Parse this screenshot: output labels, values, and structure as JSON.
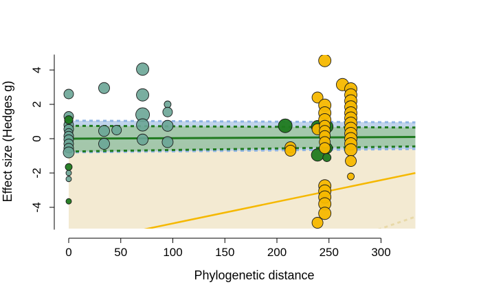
{
  "chart_data": {
    "type": "scatter",
    "title": "",
    "xlabel": "Phylogenetic distance",
    "ylabel": "Effect size (Hedges g)",
    "xlim": [
      0,
      333
    ],
    "ylim": [
      -5.3,
      4.9
    ],
    "xticks": [
      0,
      50,
      100,
      150,
      200,
      250,
      300
    ],
    "yticks": [
      -4,
      -2,
      0,
      2,
      4
    ],
    "grid": false,
    "legend": "none",
    "colors": {
      "teal": "#6aa596",
      "green": "#1f7a1f",
      "gold": "#f5b800",
      "blue_band": "#b6cde8",
      "green_band": "#9cc49c",
      "gold_band": "#f3ead2",
      "green_line": "#1f7a1f",
      "gold_line": "#f5b800",
      "blue_dash": "#8fb4e3"
    },
    "series": [
      {
        "group": "teal",
        "points": [
          [
            0,
            2.6,
            7
          ],
          [
            0,
            1.3,
            7
          ],
          [
            0,
            1.05,
            6
          ],
          [
            0,
            0.8,
            7
          ],
          [
            0,
            0.55,
            7
          ],
          [
            0,
            0.35,
            6
          ],
          [
            0,
            0.15,
            7
          ],
          [
            0,
            -0.05,
            7
          ],
          [
            0,
            -0.3,
            7
          ],
          [
            0,
            -0.55,
            7
          ],
          [
            0,
            -0.8,
            8
          ],
          [
            0,
            -2.0,
            4
          ],
          [
            0,
            -2.35,
            4
          ],
          [
            34,
            2.95,
            8
          ],
          [
            34,
            0.45,
            8
          ],
          [
            34,
            -0.3,
            8
          ],
          [
            46,
            0.5,
            7
          ],
          [
            71,
            4.05,
            9
          ],
          [
            71,
            2.55,
            9
          ],
          [
            71,
            1.4,
            10
          ],
          [
            71,
            0.8,
            9
          ],
          [
            71,
            -0.05,
            8
          ],
          [
            95,
            2.0,
            5
          ],
          [
            95,
            1.55,
            7
          ],
          [
            95,
            0.75,
            8
          ],
          [
            95,
            -0.2,
            8
          ],
          [
            271,
            2.75,
            7
          ],
          [
            271,
            2.2,
            7
          ],
          [
            271,
            1.75,
            6
          ]
        ]
      },
      {
        "group": "green",
        "points": [
          [
            0,
            1.1,
            6
          ],
          [
            0,
            -1.65,
            5
          ],
          [
            0,
            -3.65,
            4
          ],
          [
            208,
            0.75,
            10
          ],
          [
            239,
            0.7,
            9
          ],
          [
            239,
            -0.95,
            9
          ],
          [
            248,
            0.7,
            9
          ],
          [
            248,
            -0.55,
            8
          ],
          [
            248,
            -1.1,
            6
          ]
        ]
      },
      {
        "group": "gold",
        "points": [
          [
            213,
            -0.5,
            8
          ],
          [
            213,
            -0.7,
            8
          ],
          [
            239,
            2.4,
            8
          ],
          [
            239,
            0.55,
            8
          ],
          [
            239,
            -4.9,
            8
          ],
          [
            246,
            4.55,
            9
          ],
          [
            246,
            1.95,
            9
          ],
          [
            246,
            1.5,
            9
          ],
          [
            246,
            1.1,
            9
          ],
          [
            246,
            0.75,
            8
          ],
          [
            246,
            0.45,
            8
          ],
          [
            246,
            0.15,
            8
          ],
          [
            246,
            -0.2,
            8
          ],
          [
            246,
            -0.55,
            8
          ],
          [
            246,
            -2.75,
            9
          ],
          [
            246,
            -3.05,
            9
          ],
          [
            246,
            -3.4,
            9
          ],
          [
            246,
            -3.8,
            9
          ],
          [
            246,
            -4.35,
            9
          ],
          [
            263,
            3.15,
            9
          ],
          [
            271,
            2.9,
            9
          ],
          [
            271,
            2.55,
            9
          ],
          [
            271,
            2.2,
            9
          ],
          [
            271,
            1.85,
            9
          ],
          [
            271,
            1.5,
            9
          ],
          [
            271,
            1.2,
            9
          ],
          [
            271,
            0.9,
            9
          ],
          [
            271,
            0.6,
            9
          ],
          [
            271,
            0.3,
            9
          ],
          [
            271,
            0.0,
            9
          ],
          [
            271,
            -0.3,
            9
          ],
          [
            271,
            -0.65,
            9
          ],
          [
            271,
            -1.3,
            8
          ],
          [
            271,
            -2.2,
            5
          ]
        ]
      }
    ],
    "bands": {
      "blue": {
        "x": [
          0,
          333
        ],
        "upper": [
          1.05,
          0.95
        ],
        "lower": [
          -0.8,
          -0.6
        ]
      },
      "green": {
        "x": [
          0,
          333
        ],
        "upper": [
          0.75,
          0.65
        ],
        "lower": [
          -0.75,
          -0.45
        ]
      },
      "gold": {
        "x": [
          0,
          333
        ],
        "upper": [
          -0.2,
          -0.45
        ],
        "lower": [
          -5.3,
          -5.3
        ]
      }
    },
    "lines": {
      "green_fit": {
        "x": [
          0,
          333
        ],
        "y": [
          0.0,
          0.1
        ]
      },
      "gold_fit": {
        "x": [
          0,
          333
        ],
        "y": [
          -6.2,
          -2.0
        ]
      },
      "gold_lower_dashed": {
        "x": [
          297,
          333
        ],
        "y": [
          -5.3,
          -4.55
        ]
      }
    }
  }
}
